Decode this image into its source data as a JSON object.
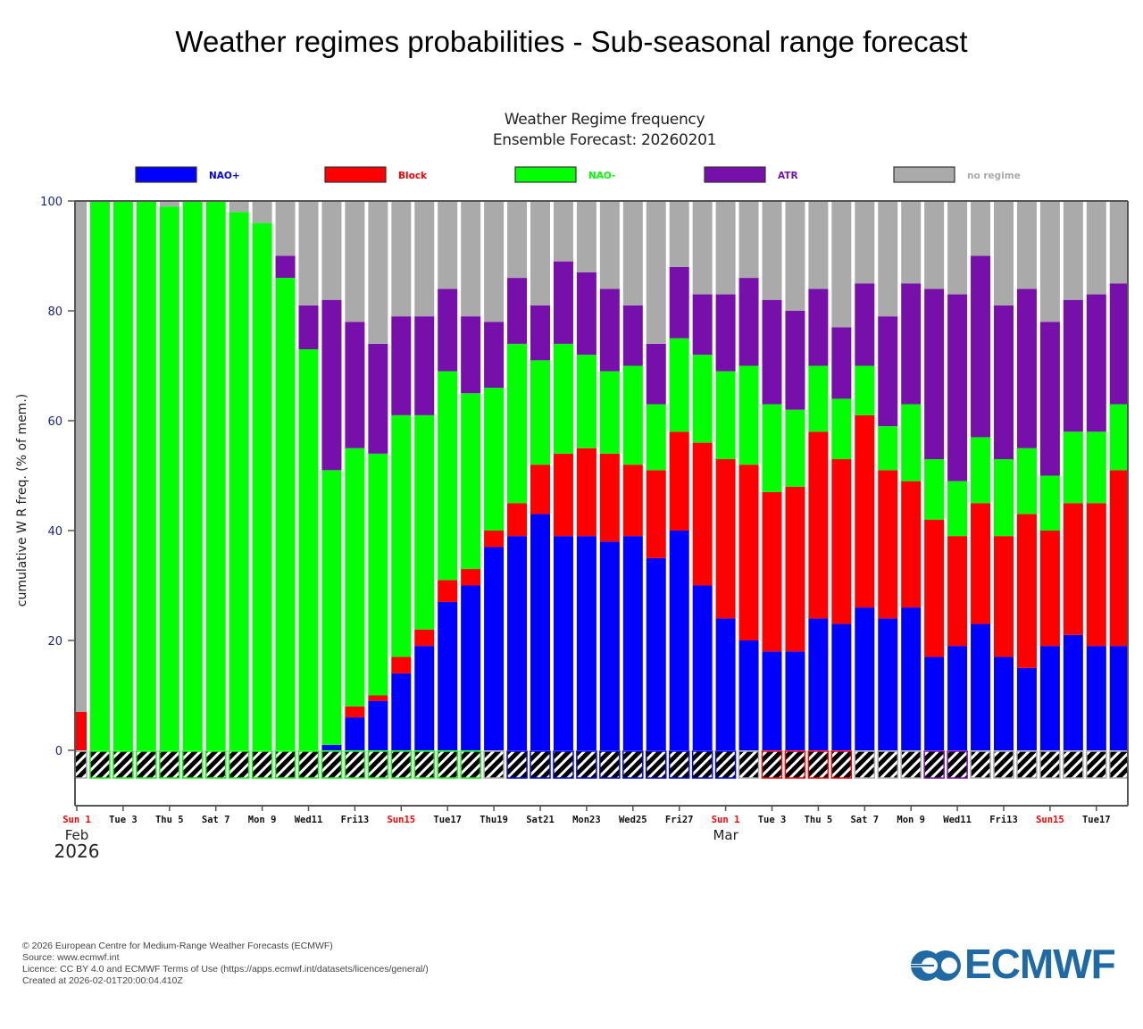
{
  "page": {
    "title": "Weather regimes probabilities - Sub-seasonal range forecast"
  },
  "footer": {
    "lines": [
      "© 2026 European Centre for Medium-Range Weather Forecasts (ECMWF)",
      "Source: www.ecmwf.int",
      "Licence: CC BY 4.0 and ECMWF Terms of Use (https://apps.ecmwf.int/datasets/licences/general/)",
      "Created at 2026-02-01T20:00:04.410Z"
    ]
  },
  "logo": {
    "text": "ECMWF",
    "color": "#1f6aa5"
  },
  "chart_data": {
    "type": "bar",
    "stacked": true,
    "title": "Weather Regime frequency",
    "subtitle": "Ensemble Forecast: 20260201",
    "xlabel": "",
    "ylabel": "cumulative W R freq. (% of mem.)",
    "ylim": [
      -10,
      100
    ],
    "yticks": [
      0,
      20,
      40,
      60,
      80,
      100
    ],
    "legend_position": "top",
    "series": [
      {
        "name": "NAO+",
        "color": "#0000ff"
      },
      {
        "name": "Block",
        "color": "#ff0000"
      },
      {
        "name": "NAO-",
        "color": "#00ff00"
      },
      {
        "name": "ATR",
        "color": "#7710aa"
      },
      {
        "name": "no regime",
        "color": "#aaaaaa"
      }
    ],
    "categories": [
      "Sun 1 Feb",
      "Mon 2",
      "Tue 3",
      "Wed 4",
      "Thu 5",
      "Fri 6",
      "Sat 7",
      "Sun 8",
      "Mon 9",
      "Tue 10",
      "Wed 11",
      "Thu 12",
      "Fri 13",
      "Sat 14",
      "Sun 15",
      "Mon 16",
      "Tue 17",
      "Wed 18",
      "Thu 19",
      "Fri 20",
      "Sat 21",
      "Sun 22",
      "Mon 23",
      "Tue 24",
      "Wed 25",
      "Thu 26",
      "Fri 27",
      "Sat 28",
      "Sun 1 Mar",
      "Mon 2",
      "Tue 3",
      "Wed 4",
      "Thu 5",
      "Fri 6",
      "Sat 7",
      "Sun 8",
      "Mon 9",
      "Tue 10",
      "Wed 11",
      "Thu 12",
      "Fri 13",
      "Sat 14",
      "Sun 15",
      "Mon 16",
      "Tue 17",
      "Wed 18"
    ],
    "cumulative_tops": [
      [
        0,
        7,
        7,
        7
      ],
      [
        0,
        0,
        100,
        100
      ],
      [
        0,
        0,
        100,
        100
      ],
      [
        0,
        0,
        100,
        100
      ],
      [
        0,
        0,
        99,
        99
      ],
      [
        0,
        0,
        100,
        100
      ],
      [
        0,
        0,
        100,
        100
      ],
      [
        0,
        0,
        98,
        98
      ],
      [
        0,
        0,
        96,
        96
      ],
      [
        0,
        0,
        86,
        90
      ],
      [
        0,
        0,
        73,
        81
      ],
      [
        1,
        1,
        51,
        82
      ],
      [
        6,
        8,
        55,
        78
      ],
      [
        9,
        10,
        54,
        74
      ],
      [
        14,
        17,
        61,
        79
      ],
      [
        19,
        22,
        61,
        79
      ],
      [
        27,
        31,
        69,
        84
      ],
      [
        30,
        33,
        65,
        79
      ],
      [
        37,
        40,
        66,
        78
      ],
      [
        39,
        45,
        74,
        86
      ],
      [
        43,
        52,
        71,
        81
      ],
      [
        39,
        54,
        74,
        89
      ],
      [
        39,
        55,
        72,
        87
      ],
      [
        38,
        54,
        69,
        84
      ],
      [
        39,
        52,
        70,
        81
      ],
      [
        35,
        51,
        63,
        74
      ],
      [
        40,
        58,
        75,
        88
      ],
      [
        30,
        56,
        72,
        83
      ],
      [
        24,
        53,
        69,
        83
      ],
      [
        20,
        52,
        70,
        86
      ],
      [
        18,
        47,
        63,
        82
      ],
      [
        18,
        48,
        62,
        80
      ],
      [
        24,
        58,
        70,
        84
      ],
      [
        23,
        53,
        64,
        77
      ],
      [
        26,
        61,
        70,
        85
      ],
      [
        24,
        51,
        59,
        79
      ],
      [
        26,
        49,
        63,
        85
      ],
      [
        17,
        42,
        53,
        84
      ],
      [
        19,
        39,
        49,
        83
      ],
      [
        23,
        45,
        57,
        90
      ],
      [
        17,
        39,
        53,
        81
      ],
      [
        15,
        43,
        55,
        84
      ],
      [
        19,
        40,
        50,
        78
      ],
      [
        21,
        45,
        58,
        82
      ],
      [
        19,
        45,
        58,
        83
      ],
      [
        19,
        51,
        63,
        85
      ]
    ],
    "dominant_regime": [
      "no regime",
      "NAO-",
      "NAO-",
      "NAO-",
      "NAO-",
      "NAO-",
      "NAO-",
      "NAO-",
      "NAO-",
      "NAO-",
      "NAO-",
      "NAO-",
      "NAO-",
      "NAO-",
      "NAO-",
      "NAO-",
      "NAO-",
      "NAO-",
      "no regime",
      "NAO+",
      "NAO+",
      "NAO+",
      "NAO+",
      "NAO+",
      "NAO+",
      "NAO+",
      "NAO+",
      "NAO+",
      "NAO+",
      "no regime",
      "Block",
      "Block",
      "Block",
      "Block",
      "no regime",
      "no regime",
      "no regime",
      "ATR",
      "ATR",
      "no regime",
      "no regime",
      "no regime",
      "no regime",
      "no regime",
      "no regime",
      "no regime"
    ],
    "xticks": [
      {
        "label": "Sun 1",
        "index": 0,
        "weekend": true
      },
      {
        "label": "Tue 3",
        "index": 2,
        "weekend": false
      },
      {
        "label": "Thu 5",
        "index": 4,
        "weekend": false
      },
      {
        "label": "Sat 7",
        "index": 6,
        "weekend": false
      },
      {
        "label": "Mon 9",
        "index": 8,
        "weekend": false
      },
      {
        "label": "Wed11",
        "index": 10,
        "weekend": false
      },
      {
        "label": "Fri13",
        "index": 12,
        "weekend": false
      },
      {
        "label": "Sun15",
        "index": 14,
        "weekend": true
      },
      {
        "label": "Tue17",
        "index": 16,
        "weekend": false
      },
      {
        "label": "Thu19",
        "index": 18,
        "weekend": false
      },
      {
        "label": "Sat21",
        "index": 20,
        "weekend": false
      },
      {
        "label": "Mon23",
        "index": 22,
        "weekend": false
      },
      {
        "label": "Wed25",
        "index": 24,
        "weekend": false
      },
      {
        "label": "Fri27",
        "index": 26,
        "weekend": false
      },
      {
        "label": "Sun 1",
        "index": 28,
        "weekend": true
      },
      {
        "label": "Tue 3",
        "index": 30,
        "weekend": false
      },
      {
        "label": "Thu 5",
        "index": 32,
        "weekend": false
      },
      {
        "label": "Sat 7",
        "index": 34,
        "weekend": false
      },
      {
        "label": "Mon 9",
        "index": 36,
        "weekend": false
      },
      {
        "label": "Wed11",
        "index": 38,
        "weekend": false
      },
      {
        "label": "Fri13",
        "index": 40,
        "weekend": false
      },
      {
        "label": "Sun15",
        "index": 42,
        "weekend": true
      },
      {
        "label": "Tue17",
        "index": 44,
        "weekend": false
      }
    ],
    "month_labels": [
      {
        "label": "Feb",
        "index": 0
      },
      {
        "label": "Mar",
        "index": 28
      }
    ],
    "year_label": "2026"
  }
}
